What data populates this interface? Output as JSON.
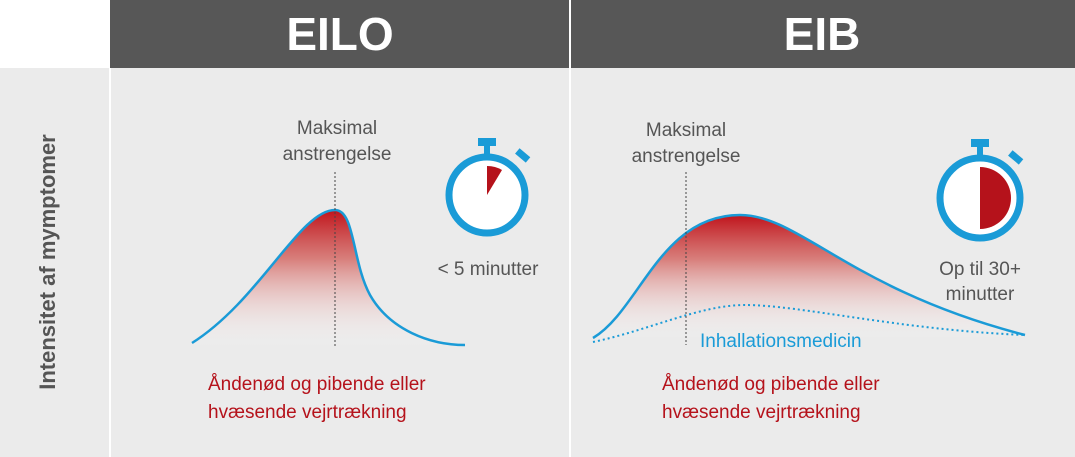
{
  "y_axis_label": "Intensitet af mymptomer",
  "panels": [
    {
      "title": "EILO",
      "peak_label_lines": [
        "Maksimal",
        "anstrengelse"
      ],
      "duration_lines": [
        "< 5 minutter"
      ],
      "symptom_lines": [
        "Åndenød og pibende eller",
        "hvæsende vejrtrækning"
      ]
    },
    {
      "title": "EIB",
      "peak_label_lines": [
        "Maksimal",
        "anstrengelse"
      ],
      "duration_lines": [
        "Op til 30+",
        "minutter"
      ],
      "curve_label": "Inhallationsmedicin",
      "symptom_lines": [
        "Åndenød og pibende eller",
        "hvæsende vejrtrækning"
      ]
    }
  ]
}
